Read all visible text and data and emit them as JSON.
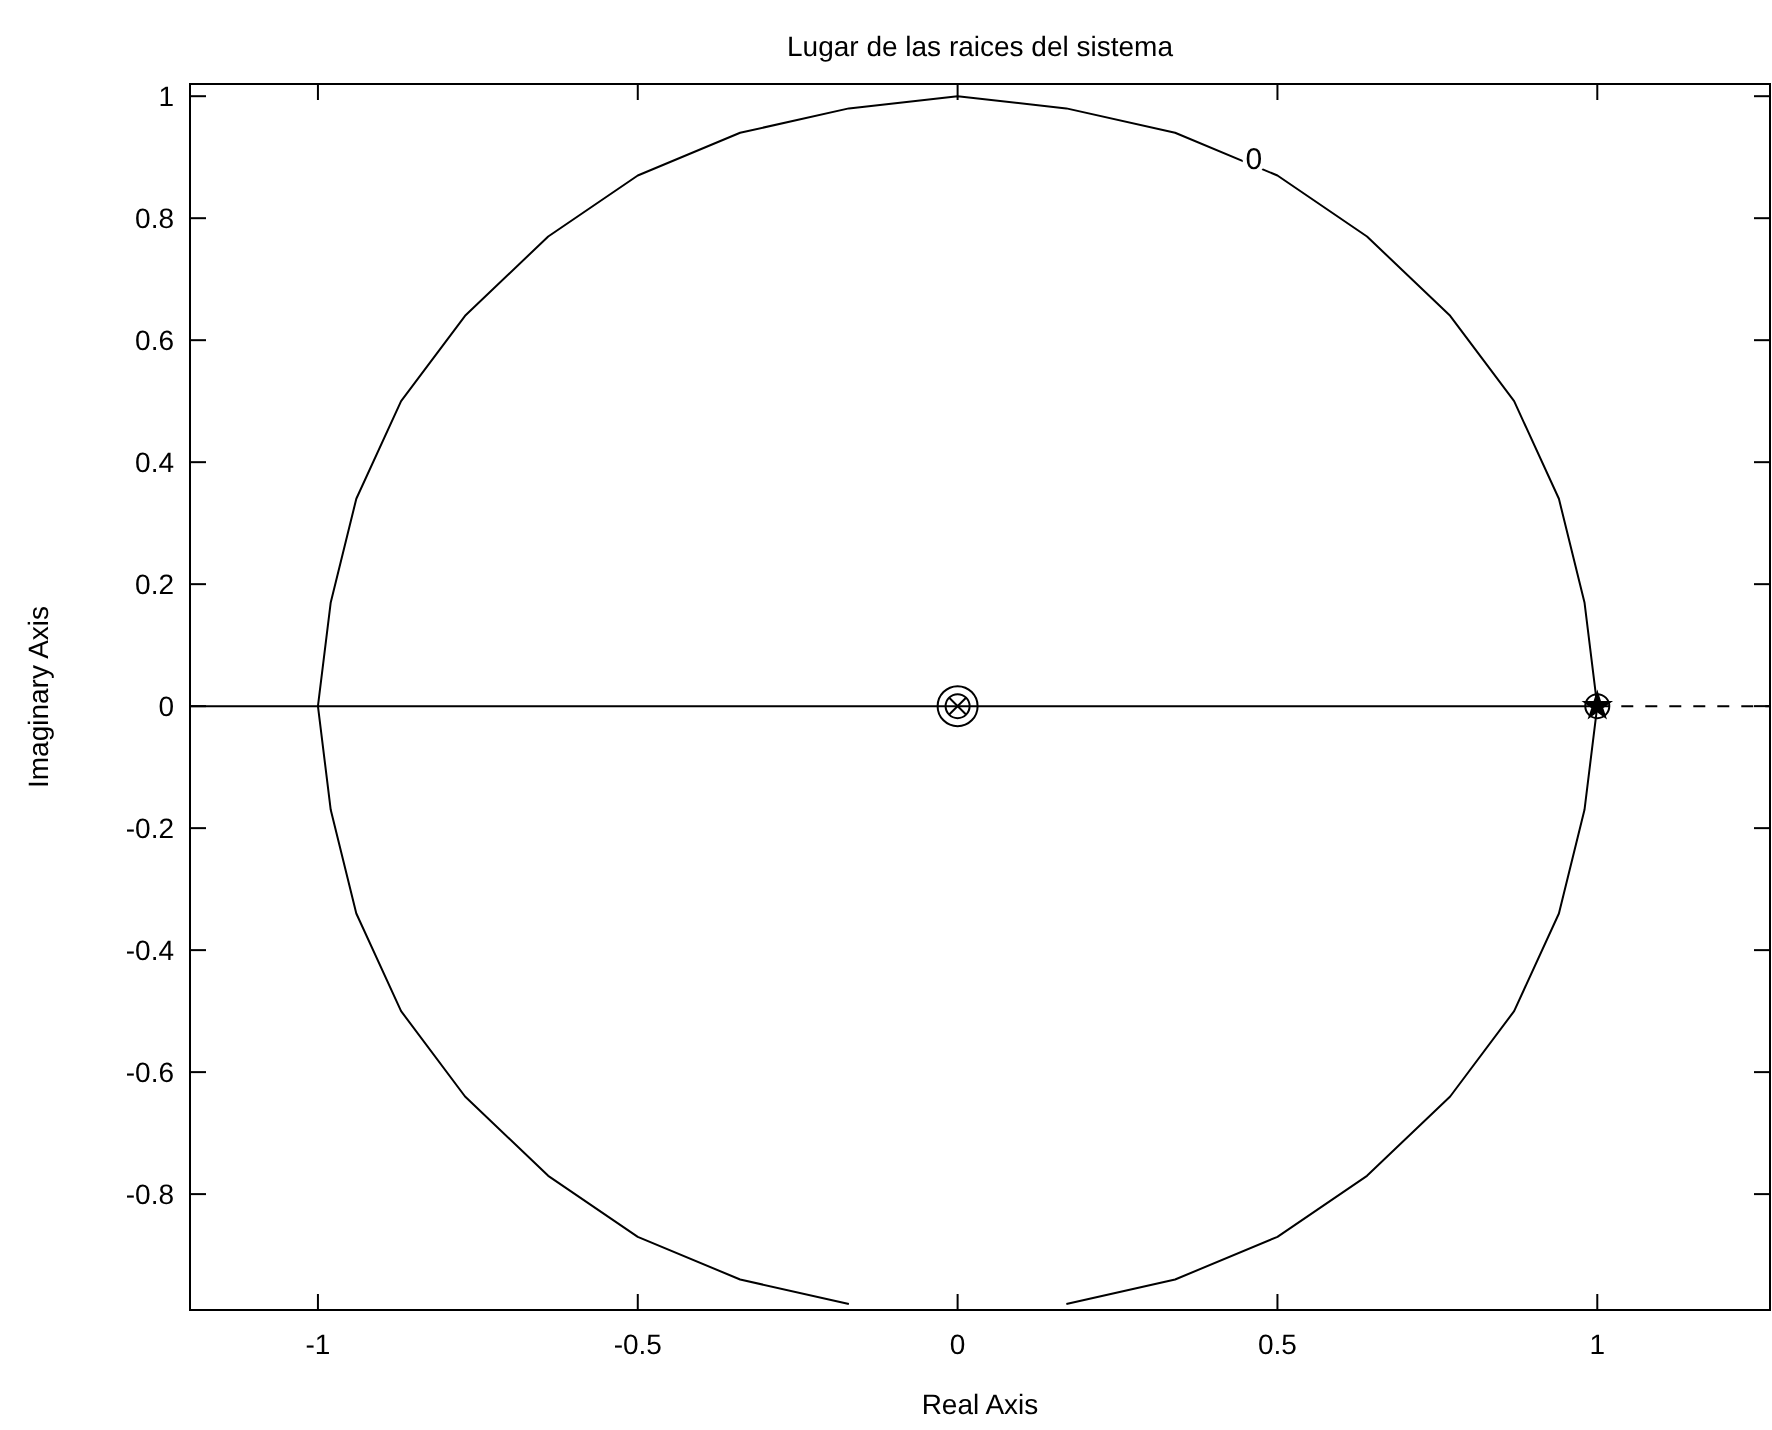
{
  "chart_data": {
    "type": "line",
    "title": "Lugar de las raices del sistema",
    "xlabel": "Real Axis",
    "ylabel": "Imaginary Axis",
    "xlim": [
      -1.2,
      1.27
    ],
    "ylim": [
      -0.99,
      1.02
    ],
    "xticks": [
      -1,
      -0.5,
      0,
      0.5,
      1
    ],
    "yticks": [
      -0.8,
      -0.6,
      -0.4,
      -0.2,
      0,
      0.2,
      0.4,
      0.6,
      0.8,
      1
    ],
    "grid": false,
    "annotations": [
      {
        "text": "0",
        "x": 0.45,
        "y": 0.9
      }
    ],
    "series": [
      {
        "type": "line",
        "color": "#000000",
        "line_style": "solid",
        "marker": "none",
        "x": [
          0.17,
          0.34,
          0.5,
          0.64,
          0.77,
          0.87,
          0.94,
          0.98,
          1,
          0.98,
          0.94,
          0.87,
          0.77,
          0.64,
          0.5,
          0.34,
          0.17,
          0,
          -0.17,
          -0.34,
          -0.5,
          -0.64,
          -0.77,
          -0.87,
          -0.94,
          -0.98,
          -1,
          -0.98,
          -0.94,
          -0.87,
          -0.77,
          -0.64,
          -0.5,
          -0.34,
          -0.17
        ],
        "values": [
          -0.98,
          -0.94,
          -0.87,
          -0.77,
          -0.64,
          -0.5,
          -0.34,
          -0.17,
          0,
          0.17,
          0.34,
          0.5,
          0.64,
          0.77,
          0.87,
          0.94,
          0.98,
          1,
          0.98,
          0.94,
          0.87,
          0.77,
          0.64,
          0.5,
          0.34,
          0.17,
          0,
          -0.17,
          -0.34,
          -0.5,
          -0.64,
          -0.77,
          -0.87,
          -0.94,
          -0.98
        ]
      },
      {
        "color": "#000000",
        "line_style": "solid",
        "marker": "none",
        "x": [
          -1.2,
          1
        ],
        "values": [
          0,
          0
        ]
      },
      {
        "type": "line",
        "color": "#000000",
        "line_style": "dashed",
        "marker": "none",
        "x": [
          1,
          1.27
        ],
        "values": [
          0,
          0
        ]
      },
      {
        "type": "scatter",
        "color": "#000000",
        "marker": "circle",
        "x": [
          0,
          1
        ],
        "values": [
          0,
          0
        ]
      },
      {
        "type": "scatter",
        "color": "#000000",
        "marker": "circle",
        "x": [
          0
        ],
        "values": [
          0
        ]
      },
      {
        "type": "scatter",
        "color": "#000000",
        "marker": "cross",
        "x": [
          0
        ],
        "values": [
          0
        ]
      },
      {
        "type": "scatter",
        "color": "#000000",
        "marker": "star",
        "x": [
          1
        ],
        "values": [
          0
        ]
      }
    ]
  }
}
